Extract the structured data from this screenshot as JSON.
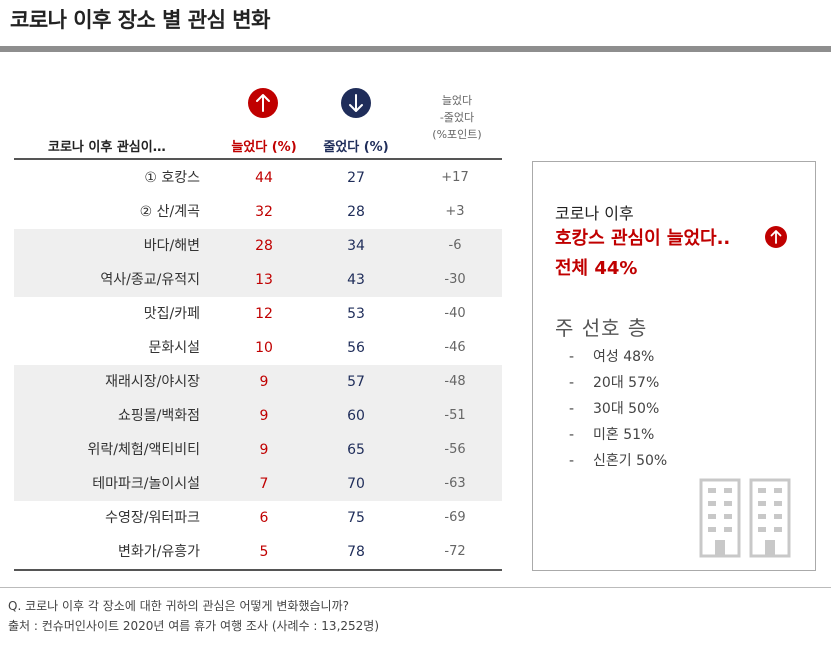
{
  "title": "코로나 이후 장소 별 관심 변화",
  "headers": {
    "category": "코로나 이후 관심이…",
    "increased": "늘었다 (%)",
    "decreased": "줄었다 (%)",
    "diff_line1": "늘었다",
    "diff_line2": "-줄었다",
    "diff_line3": "(%포인트)"
  },
  "colors": {
    "increased": "#c00000",
    "decreased": "#1f2d5a",
    "shade": "#efefef"
  },
  "icons": {
    "increased": "arrow-up-circle-icon",
    "decreased": "arrow-down-circle-icon",
    "building": "building-icon"
  },
  "chart_data": {
    "type": "table",
    "title": "코로나 이후 장소 별 관심 변화",
    "columns": [
      "코로나 이후 관심이…",
      "늘었다 (%)",
      "줄었다 (%)",
      "늘었다-줄었다 (%포인트)"
    ],
    "rows": [
      {
        "category": "① 호캉스",
        "increased": "44",
        "decreased": "27",
        "diff": "+17",
        "shaded": false
      },
      {
        "category": "② 산/계곡",
        "increased": "32",
        "decreased": "28",
        "diff": "+3",
        "shaded": false
      },
      {
        "category": "바다/해변",
        "increased": "28",
        "decreased": "34",
        "diff": "-6",
        "shaded": true
      },
      {
        "category": "역사/종교/유적지",
        "increased": "13",
        "decreased": "43",
        "diff": "-30",
        "shaded": true
      },
      {
        "category": "맛집/카페",
        "increased": "12",
        "decreased": "53",
        "diff": "-40",
        "shaded": false
      },
      {
        "category": "문화시설",
        "increased": "10",
        "decreased": "56",
        "diff": "-46",
        "shaded": false
      },
      {
        "category": "재래시장/야시장",
        "increased": "9",
        "decreased": "57",
        "diff": "-48",
        "shaded": true
      },
      {
        "category": "쇼핑몰/백화점",
        "increased": "9",
        "decreased": "60",
        "diff": "-51",
        "shaded": true
      },
      {
        "category": "위락/체험/액티비티",
        "increased": "9",
        "decreased": "65",
        "diff": "-56",
        "shaded": true
      },
      {
        "category": "테마파크/놀이시설",
        "increased": "7",
        "decreased": "70",
        "diff": "-63",
        "shaded": true
      },
      {
        "category": "수영장/워터파크",
        "increased": "6",
        "decreased": "75",
        "diff": "-69",
        "shaded": false
      },
      {
        "category": "변화가/유흥가",
        "increased": "5",
        "decreased": "78",
        "diff": "-72",
        "shaded": false
      }
    ]
  },
  "side_panel": {
    "line1": "코로나 이후",
    "line2": "호캉스 관심이 늘었다..",
    "line3": "전체 44%",
    "preferred_title": "주 선호 층",
    "dash": "-",
    "preferred": [
      "여성 48%",
      "20대 57%",
      "30대 50%",
      "미혼  51%",
      "신혼기 50%"
    ]
  },
  "footer": {
    "question": "Q. 코로나 이후 각 장소에 대한 귀하의 관심은 어떻게 변화했습니까?",
    "source": "출처 : 컨슈머인사이트 2020년 여름 휴가 여행 조사 (사례수 : 13,252명)"
  }
}
